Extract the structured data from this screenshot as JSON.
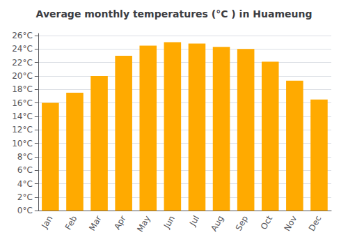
{
  "chart_data": {
    "type": "bar",
    "title": "Average monthly temperatures (°C ) in Huameung",
    "categories": [
      "Jan",
      "Feb",
      "Mar",
      "Apr",
      "May",
      "Jun",
      "Jul",
      "Aug",
      "Sep",
      "Oct",
      "Nov",
      "Dec"
    ],
    "values": [
      16.0,
      17.5,
      20.0,
      23.0,
      24.5,
      25.0,
      24.8,
      24.3,
      24.0,
      22.1,
      19.3,
      16.5
    ],
    "color": "#FFAA00",
    "ylim": [
      0,
      26.3
    ],
    "yticks": [
      {
        "value": 0,
        "label": "0°C"
      },
      {
        "value": 2,
        "label": "2°C"
      },
      {
        "value": 4,
        "label": "4°C"
      },
      {
        "value": 6,
        "label": "6°C"
      },
      {
        "value": 8,
        "label": "8°C"
      },
      {
        "value": 10,
        "label": "10°C"
      },
      {
        "value": 12,
        "label": "12°C"
      },
      {
        "value": 14,
        "label": "14°C"
      },
      {
        "value": 16,
        "label": "16°C"
      },
      {
        "value": 18,
        "label": "18°C"
      },
      {
        "value": 20,
        "label": "20°C"
      },
      {
        "value": 22,
        "label": "22°C"
      },
      {
        "value": 24,
        "label": "24°C"
      },
      {
        "value": 26,
        "label": "26°C"
      }
    ],
    "grid": true
  }
}
